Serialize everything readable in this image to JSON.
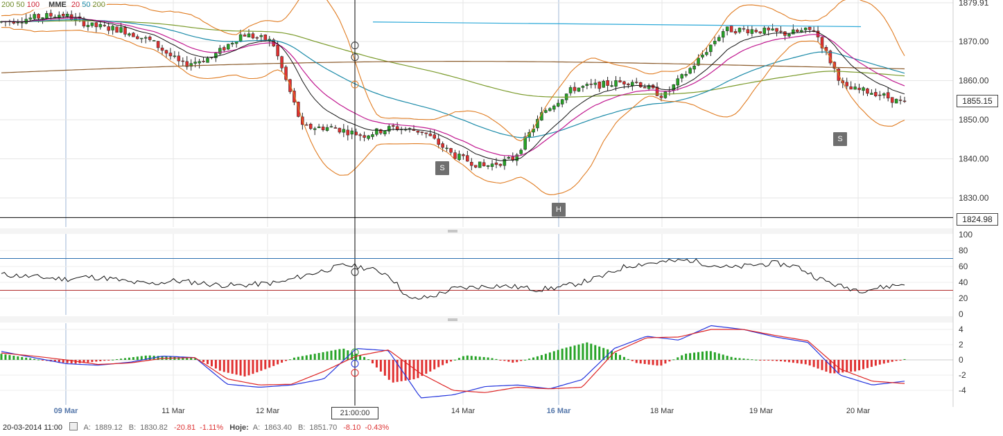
{
  "legend": {
    "group1_a": "200",
    "group1_b": "50",
    "group1_c": "100",
    "label": "MME",
    "group2_a": "20",
    "group2_b": "50",
    "group2_c": "200"
  },
  "price_axis": [
    "1879.91",
    "1870.00",
    "1860.00",
    "1850.00",
    "1840.00",
    "1830.00"
  ],
  "current_price": "1855.15",
  "hline_price": "1824.98",
  "rsi_axis": [
    "100",
    "80",
    "60",
    "40",
    "20",
    "0"
  ],
  "macd_axis": [
    "4",
    "2",
    "0",
    "-2",
    "-4"
  ],
  "x_labels": [
    {
      "label": "09 Mar",
      "highlight": true
    },
    {
      "label": "11 Mar",
      "highlight": false
    },
    {
      "label": "12 Mar",
      "highlight": false
    },
    {
      "label": "14 Mar",
      "highlight": false
    },
    {
      "label": "16 Mar",
      "highlight": true
    },
    {
      "label": "18 Mar",
      "highlight": false
    },
    {
      "label": "19 Mar",
      "highlight": false
    },
    {
      "label": "20 Mar",
      "highlight": false
    }
  ],
  "crosshair_time": "21:00:00",
  "markers": [
    "S",
    "H",
    "S"
  ],
  "status": {
    "date": "20-03-2014 11:00",
    "a_label": "A:",
    "a_value": "1889.12",
    "b_label": "B:",
    "b_value": "1830.82",
    "change": "-20.81",
    "change_pct": "-1.11%",
    "hoje_label": "Hoje:",
    "hoje_a_label": "A:",
    "hoje_a": "1863.40",
    "hoje_b_label": "B:",
    "hoje_b": "1851.70",
    "hoje_change": "-8.10",
    "hoje_change_pct": "-0.43%"
  },
  "colors": {
    "up": "#27a327",
    "down": "#e03030",
    "bollinger": "#e07b20",
    "mme20": "#c0178f",
    "mme50": "#1a8aa8",
    "mme200": "#7a9a2a",
    "black_ma": "#111111",
    "rsi_upper": "#2a6fb0",
    "rsi_lower": "#b02a2a",
    "macd_line": "#2233dd",
    "signal_line": "#dd2222"
  },
  "chart_data": [
    {
      "type": "line",
      "kind": "candlestick",
      "x": [
        "09 Mar",
        "11 Mar",
        "12 Mar",
        "14 Mar",
        "16 Mar",
        "18 Mar",
        "19 Mar",
        "20 Mar"
      ],
      "close_path": [
        1875,
        1876,
        1877,
        1874,
        1873,
        1870,
        1864,
        1866,
        1872,
        1870,
        1848,
        1848,
        1846,
        1848,
        1847,
        1841,
        1838,
        1840,
        1852,
        1858,
        1859,
        1860,
        1856,
        1864,
        1873,
        1873,
        1872,
        1873,
        1858,
        1857,
        1854
      ],
      "markers": [
        {
          "label": "S",
          "x_pos": "14 Mar",
          "value": 1838
        },
        {
          "label": "H",
          "x_pos": "16 Mar",
          "value": 1830
        },
        {
          "label": "S",
          "x_pos": "20 Mar",
          "value": 1849
        }
      ],
      "resistance_line": 1874,
      "horizontal_line": 1824.98,
      "last_price": 1855.15,
      "ylim": [
        1822,
        1881
      ]
    },
    {
      "type": "line",
      "kind": "RSI",
      "series": [
        {
          "values": [
            50,
            48,
            46,
            44,
            47,
            45,
            40,
            38,
            42,
            40,
            37,
            36,
            38,
            40,
            48,
            55,
            62,
            58,
            50,
            18,
            22,
            32,
            34,
            36,
            34,
            31,
            34,
            40,
            48,
            60,
            64,
            66,
            68,
            62,
            58,
            62,
            64,
            60,
            45,
            35,
            30,
            34,
            38
          ]
        }
      ],
      "levels": [
        70,
        30
      ],
      "ylim": [
        0,
        100
      ]
    },
    {
      "type": "bar",
      "kind": "MACD",
      "histogram": [
        0.8,
        0.3,
        -0.2,
        -0.5,
        -0.2,
        0.2,
        0.6,
        0.4,
        0.2,
        -1.5,
        -2.2,
        -1.0,
        0.3,
        0.9,
        1.5,
        0.2,
        -3.0,
        -2.5,
        -0.8,
        0.6,
        0.3,
        -0.4,
        0.5,
        1.5,
        2.3,
        1.2,
        -0.4,
        -0.8,
        0.8,
        1.2,
        0.3,
        0.0,
        -0.2,
        -0.6,
        -1.8,
        -1.5,
        -0.6,
        0.1
      ],
      "series": [
        {
          "values": [
            1.1,
            0.3,
            -0.5,
            -0.7,
            -0.3,
            0.5,
            0.3,
            -3.2,
            -3.6,
            -3.3,
            -2.5,
            1.5,
            1.2,
            -5.0,
            -4.6,
            -3.5,
            -3.3,
            -3.8,
            -2.6,
            1.5,
            3.1,
            2.6,
            4.5,
            4.0,
            3.0,
            2.3,
            -2.0,
            -3.3,
            -2.8
          ]
        },
        {
          "values": [
            0.9,
            0.5,
            0.0,
            -0.6,
            -0.4,
            0.2,
            0.3,
            -2.5,
            -3.3,
            -3.2,
            -1.5,
            0.5,
            1.3,
            -1.8,
            -4.0,
            -4.3,
            -3.6,
            -3.8,
            -3.6,
            1.0,
            2.9,
            3.0,
            4.0,
            4.0,
            3.2,
            2.5,
            -1.2,
            -2.8,
            -3.1
          ]
        }
      ],
      "ylim": [
        -6,
        5
      ]
    }
  ]
}
